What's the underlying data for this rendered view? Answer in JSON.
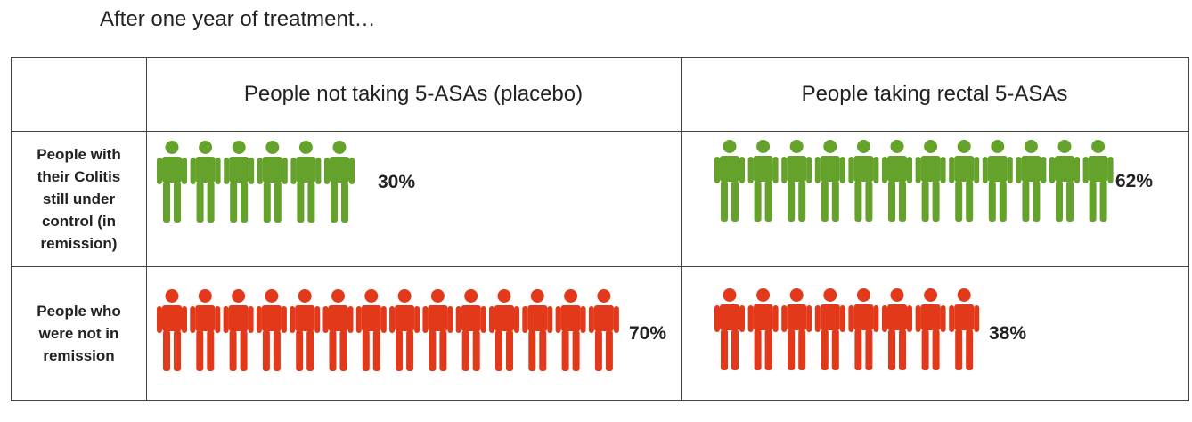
{
  "title": "After one year of treatment…",
  "columns": [
    "People not taking 5-ASAs (placebo)",
    "People taking rectal 5-ASAs"
  ],
  "rows": [
    "People with their Colitis still under control (in remission)",
    "People who were not in remission"
  ],
  "colors": {
    "remission": "#64a22b",
    "not_remission": "#e2391b"
  },
  "chart_data": {
    "type": "table",
    "unit": "%",
    "columns": [
      "People not taking 5-ASAs (placebo)",
      "People taking rectal 5-ASAs"
    ],
    "rows": [
      "People with their Colitis still under control (in remission)",
      "People who were not in remission"
    ],
    "cells": [
      {
        "row": 0,
        "col": 0,
        "value": 30,
        "label": "30%",
        "figures": 6
      },
      {
        "row": 0,
        "col": 1,
        "value": 62,
        "label": "62%",
        "figures": 12
      },
      {
        "row": 1,
        "col": 0,
        "value": 70,
        "label": "70%",
        "figures": 14
      },
      {
        "row": 1,
        "col": 1,
        "value": 38,
        "label": "38%",
        "figures": 8
      }
    ]
  }
}
